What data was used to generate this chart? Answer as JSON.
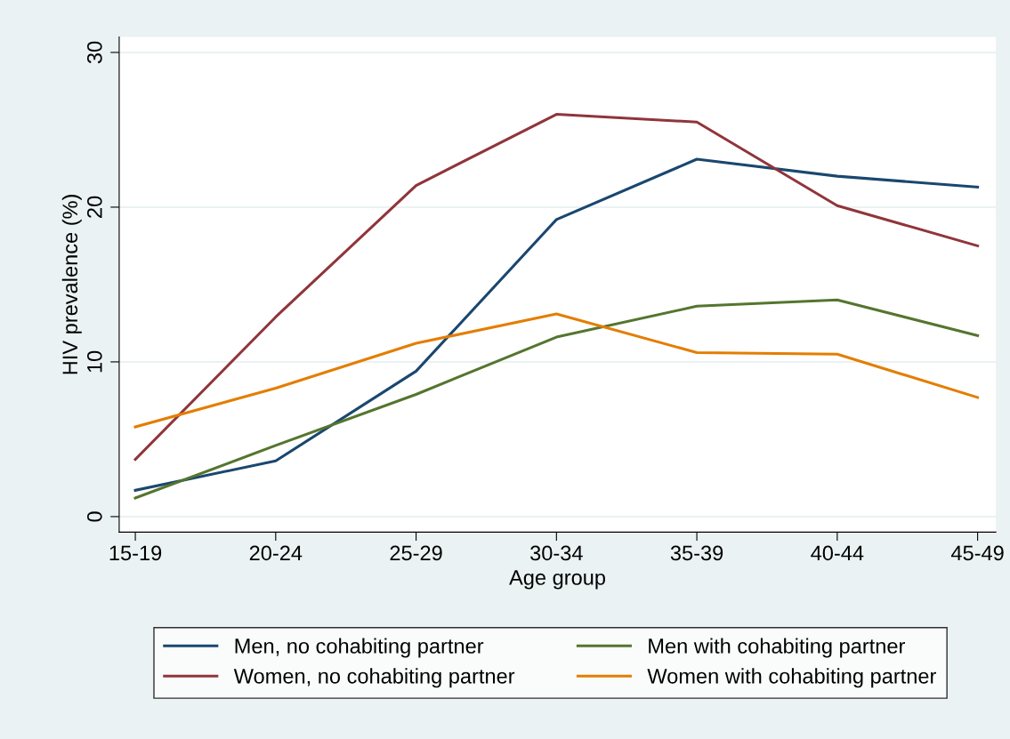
{
  "chart_data": {
    "type": "line",
    "xlabel": "Age group",
    "ylabel": "HIV prevalence (%)",
    "categories": [
      "15-19",
      "20-24",
      "25-29",
      "30-34",
      "35-39",
      "40-44",
      "45-49"
    ],
    "series": [
      {
        "name": "Men, no cohabiting partner",
        "color": "#1a476f",
        "values": [
          1.7,
          3.6,
          9.4,
          19.2,
          23.1,
          22.0,
          21.3
        ]
      },
      {
        "name": "Women, no cohabiting partner",
        "color": "#90353b",
        "values": [
          3.7,
          12.9,
          21.4,
          26.0,
          25.5,
          20.1,
          17.5
        ]
      },
      {
        "name": "Men with cohabiting partner",
        "color": "#55752f",
        "values": [
          1.2,
          4.6,
          7.9,
          11.6,
          13.6,
          14.0,
          11.7
        ]
      },
      {
        "name": "Women with cohabiting partner",
        "color": "#e37e00",
        "values": [
          5.8,
          8.3,
          11.2,
          13.1,
          10.6,
          10.5,
          7.7
        ]
      }
    ],
    "ylim": [
      -1,
      31
    ],
    "yticks": [
      0,
      10,
      20,
      30
    ],
    "grid": "y",
    "legend": "bottom",
    "marker": "none",
    "line_style": "solid"
  }
}
